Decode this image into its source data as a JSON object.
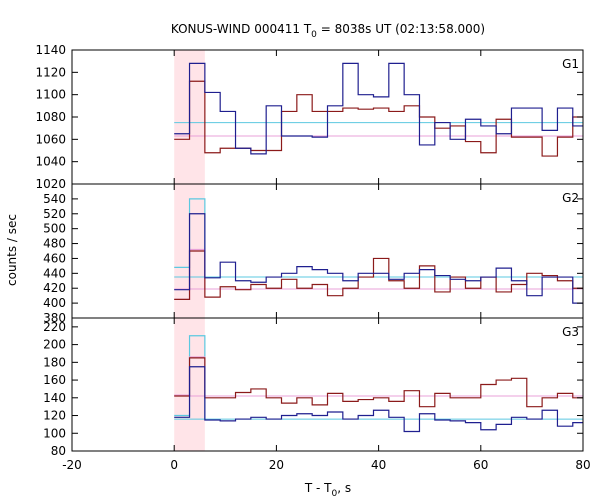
{
  "chart_data": {
    "type": "line",
    "title": "KONUS-WIND 000411 T",
    "title_sub": "0",
    "title_rest": " = 8038s UT (02:13:58.000)",
    "xlabel": "T - T",
    "xlabel_sub": "0",
    "xlabel_rest": ", s",
    "ylabel": "counts / sec",
    "xlim": [
      -20,
      80
    ],
    "x_ticks": [
      -20,
      0,
      20,
      40,
      60,
      80
    ],
    "x_tick_labels": [
      "-20",
      "0",
      "20",
      "40",
      "60",
      "80"
    ],
    "highlight_x": [
      0,
      6
    ],
    "colors": {
      "blue": "#1f1f8f",
      "red": "#8b1a1a",
      "cyan": "#5bc8e0",
      "pink": "#e8a0d8",
      "highlight": "#ffe4e8"
    },
    "panels": [
      {
        "name": "G1",
        "ylim": [
          1020,
          1140
        ],
        "y_ticks": [
          1020,
          1040,
          1060,
          1080,
          1100,
          1120,
          1140
        ],
        "y_tick_labels": [
          "1020",
          "1040",
          "1060",
          "1080",
          "1100",
          "1120",
          "1140"
        ],
        "bins": [
          0,
          3,
          6,
          9,
          12,
          15,
          18,
          21,
          24,
          27,
          30,
          33,
          36,
          39,
          42,
          45,
          48,
          51,
          54,
          57,
          60,
          63,
          66,
          69,
          72,
          75,
          78,
          80
        ],
        "blue": [
          1065,
          1128,
          1102,
          1085,
          1052,
          1047,
          1090,
          1063,
          1063,
          1062,
          1090,
          1128,
          1100,
          1098,
          1128,
          1100,
          1055,
          1075,
          1060,
          1078,
          1072,
          1065,
          1088,
          1088,
          1068,
          1088,
          1072
        ],
        "red": [
          1060,
          1112,
          1048,
          1052,
          1052,
          1050,
          1050,
          1085,
          1100,
          1085,
          1085,
          1088,
          1087,
          1088,
          1085,
          1090,
          1080,
          1070,
          1072,
          1058,
          1048,
          1078,
          1062,
          1062,
          1045,
          1062,
          1080
        ],
        "cyan_level": 1075,
        "pink_level": 1063,
        "pink_pre": 1063,
        "cyan_pre": 1075
      },
      {
        "name": "G2",
        "ylim": [
          380,
          560
        ],
        "y_ticks": [
          380,
          400,
          420,
          440,
          460,
          480,
          500,
          520,
          540
        ],
        "y_tick_labels": [
          "380",
          "400",
          "420",
          "440",
          "460",
          "480",
          "500",
          "520",
          "540"
        ],
        "bins": [
          0,
          3,
          6,
          9,
          12,
          15,
          18,
          21,
          24,
          27,
          30,
          33,
          36,
          39,
          42,
          45,
          48,
          51,
          54,
          57,
          60,
          63,
          66,
          69,
          72,
          75,
          78,
          80
        ],
        "blue": [
          418,
          520,
          434,
          455,
          430,
          428,
          435,
          440,
          449,
          445,
          440,
          430,
          440,
          440,
          432,
          440,
          445,
          437,
          432,
          430,
          435,
          447,
          430,
          410,
          435,
          435,
          400
        ],
        "red": [
          405,
          470,
          408,
          422,
          418,
          425,
          420,
          432,
          420,
          425,
          410,
          420,
          435,
          460,
          430,
          420,
          450,
          415,
          435,
          420,
          435,
          415,
          425,
          440,
          437,
          430,
          420
        ],
        "cyan_level": 435,
        "pink_level": 419,
        "pre_cyan": 448,
        "pre_pink": 405,
        "peak_cyan": 540,
        "peak_pink": 472
      },
      {
        "name": "G3",
        "ylim": [
          80,
          230
        ],
        "y_ticks": [
          80,
          100,
          120,
          140,
          160,
          180,
          200,
          220
        ],
        "y_tick_labels": [
          "80",
          "100",
          "120",
          "140",
          "160",
          "180",
          "200",
          "220"
        ],
        "bins": [
          0,
          3,
          6,
          9,
          12,
          15,
          18,
          21,
          24,
          27,
          30,
          33,
          36,
          39,
          42,
          45,
          48,
          51,
          54,
          57,
          60,
          63,
          66,
          69,
          72,
          75,
          78,
          80
        ],
        "blue": [
          118,
          175,
          115,
          114,
          116,
          118,
          116,
          120,
          122,
          120,
          124,
          116,
          120,
          126,
          118,
          102,
          122,
          115,
          114,
          112,
          104,
          110,
          118,
          116,
          126,
          108,
          112
        ],
        "red": [
          142,
          185,
          140,
          140,
          146,
          150,
          140,
          134,
          140,
          132,
          145,
          136,
          138,
          140,
          136,
          148,
          130,
          145,
          140,
          140,
          155,
          160,
          162,
          130,
          140,
          145,
          140
        ],
        "cyan_level": 116,
        "pink_level": 142,
        "pre_cyan": 120,
        "pre_pink": 143,
        "peak_cyan": 210,
        "peak_pink": 186
      }
    ]
  }
}
